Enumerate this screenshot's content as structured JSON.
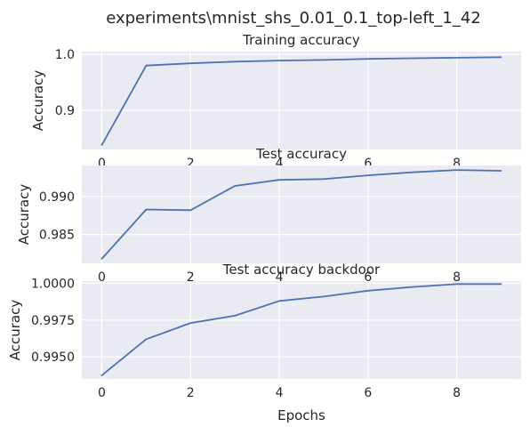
{
  "figure": {
    "suptitle": "experiments\\mnist_shs_0.01_0.1_top-left_1_42"
  },
  "chart_data": [
    {
      "type": "line",
      "title": "Training accuracy",
      "xlabel": "",
      "ylabel": "Accuracy",
      "x": [
        0,
        1,
        2,
        3,
        4,
        5,
        6,
        7,
        8,
        9
      ],
      "series": [
        {
          "values": [
            0.838,
            0.98,
            0.984,
            0.987,
            0.989,
            0.99,
            0.992,
            0.993,
            0.994,
            0.995
          ],
          "color": "#4c72b0"
        }
      ],
      "xlim": [
        -0.45,
        9.45
      ],
      "ylim": [
        0.83,
        1.005
      ],
      "xticks": [
        "0",
        "2",
        "4",
        "6",
        "8"
      ],
      "yticks": [
        "0.9",
        "1.0"
      ],
      "grid": true
    },
    {
      "type": "line",
      "title": "Test accuracy",
      "xlabel": "",
      "ylabel": "Accuracy",
      "x": [
        0,
        1,
        2,
        3,
        4,
        5,
        6,
        7,
        8,
        9
      ],
      "series": [
        {
          "values": [
            0.9818,
            0.9883,
            0.9882,
            0.9914,
            0.9922,
            0.9923,
            0.9928,
            0.9932,
            0.9935,
            0.9934
          ],
          "color": "#4c72b0"
        }
      ],
      "xlim": [
        -0.45,
        9.45
      ],
      "ylim": [
        0.9812,
        0.9941
      ],
      "xticks": [
        "0",
        "2",
        "4",
        "6",
        "8"
      ],
      "yticks": [
        "0.985",
        "0.990"
      ],
      "grid": true
    },
    {
      "type": "line",
      "title": "Test accuracy backdoor",
      "xlabel": "Epochs",
      "ylabel": "Accuracy",
      "x": [
        0,
        1,
        2,
        3,
        4,
        5,
        6,
        7,
        8,
        9
      ],
      "series": [
        {
          "values": [
            0.99375,
            0.9962,
            0.9973,
            0.9978,
            0.9988,
            0.9991,
            0.9995,
            0.99975,
            0.99995,
            0.99995
          ],
          "color": "#4c72b0"
        }
      ],
      "xlim": [
        -0.45,
        9.45
      ],
      "ylim": [
        0.9935,
        1.00015
      ],
      "xticks": [
        "0",
        "2",
        "4",
        "6",
        "8"
      ],
      "yticks": [
        "0.9950",
        "0.9975",
        "1.0000"
      ],
      "grid": true
    }
  ]
}
